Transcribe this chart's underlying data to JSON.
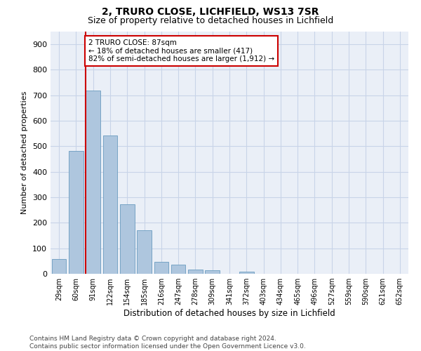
{
  "title1": "2, TRURO CLOSE, LICHFIELD, WS13 7SR",
  "title2": "Size of property relative to detached houses in Lichfield",
  "xlabel": "Distribution of detached houses by size in Lichfield",
  "ylabel": "Number of detached properties",
  "footnote": "Contains HM Land Registry data © Crown copyright and database right 2024.\nContains public sector information licensed under the Open Government Licence v3.0.",
  "bar_labels": [
    "29sqm",
    "60sqm",
    "91sqm",
    "122sqm",
    "154sqm",
    "185sqm",
    "216sqm",
    "247sqm",
    "278sqm",
    "309sqm",
    "341sqm",
    "372sqm",
    "403sqm",
    "434sqm",
    "465sqm",
    "496sqm",
    "527sqm",
    "559sqm",
    "590sqm",
    "621sqm",
    "652sqm"
  ],
  "bar_values": [
    57,
    483,
    720,
    543,
    272,
    172,
    46,
    35,
    17,
    14,
    0,
    9,
    0,
    0,
    0,
    0,
    0,
    0,
    0,
    0,
    0
  ],
  "bar_color": "#aec6de",
  "bar_edge_color": "#6a9bbf",
  "vline_color": "#cc0000",
  "annotation_text": "2 TRURO CLOSE: 87sqm\n← 18% of detached houses are smaller (417)\n82% of semi-detached houses are larger (1,912) →",
  "annotation_box_color": "#ffffff",
  "annotation_box_edge": "#cc0000",
  "ylim": [
    0,
    950
  ],
  "yticks": [
    0,
    100,
    200,
    300,
    400,
    500,
    600,
    700,
    800,
    900
  ],
  "grid_color": "#c8d4e8",
  "bg_color": "#eaeff7",
  "title1_fontsize": 10,
  "title2_fontsize": 9,
  "xlabel_fontsize": 8.5,
  "ylabel_fontsize": 8,
  "footnote_fontsize": 6.5
}
